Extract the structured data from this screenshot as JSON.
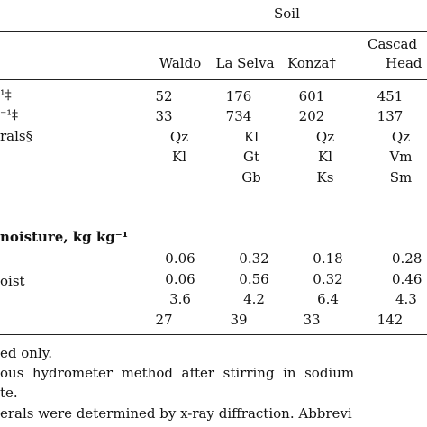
{
  "header": {
    "group_label": "Soil",
    "columns": [
      "Waldo",
      "La Selva",
      "Konza†",
      "Cascad",
      "Head"
    ]
  },
  "row_labels": {
    "r1": "¹‡",
    "r2": "⁻¹‡",
    "r3": "rals§",
    "moisture": "noisture, kg kg⁻¹",
    "oist": "oist"
  },
  "cells": {
    "r1": [
      "52",
      "176",
      "601",
      "451"
    ],
    "r2": [
      "33",
      "734",
      "202",
      "137"
    ],
    "m1": [
      "Qz",
      "Kl",
      "Qz",
      "Qz"
    ],
    "m2": [
      "Kl",
      "Gt",
      "Kl",
      "Vm"
    ],
    "m3": [
      "Gb",
      "Ks",
      "Sm"
    ],
    "v1": [
      "0.06",
      "0.32",
      "0.18",
      "0.28"
    ],
    "v2": [
      "0.06",
      "0.56",
      "0.32",
      "0.46"
    ],
    "v3": [
      "3.6",
      "4.2",
      "6.4",
      "4.3"
    ],
    "v4": [
      "27",
      "39",
      "33",
      "142"
    ]
  },
  "footnotes": [
    "ed only.",
    "ous  hydrometer  method  after  stirring  in  sodium",
    "te.",
    "erals were determined by x-ray diffraction. Abbrevi"
  ]
}
